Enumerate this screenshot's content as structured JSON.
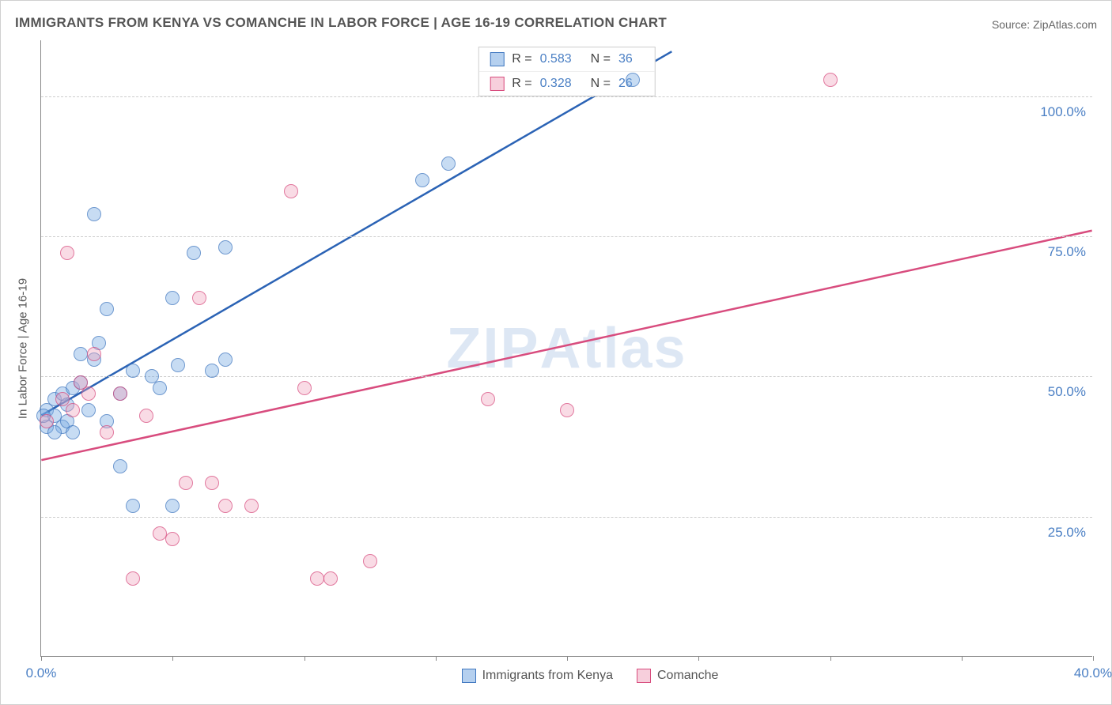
{
  "title": "IMMIGRANTS FROM KENYA VS COMANCHE IN LABOR FORCE | AGE 16-19 CORRELATION CHART",
  "source": "Source: ZipAtlas.com",
  "y_axis_label": "In Labor Force | Age 16-19",
  "watermark": "ZIPAtlas",
  "chart": {
    "type": "scatter",
    "xlim": [
      0,
      40
    ],
    "ylim": [
      0,
      110
    ],
    "x_ticks": [
      0,
      5,
      10,
      15,
      20,
      25,
      30,
      35,
      40
    ],
    "x_tick_labels": {
      "0": "0.0%",
      "40": "40.0%"
    },
    "y_gridlines": [
      25,
      50,
      75,
      100
    ],
    "y_tick_labels": {
      "25": "25.0%",
      "50": "50.0%",
      "75": "75.0%",
      "100": "100.0%"
    },
    "background_color": "#ffffff",
    "grid_color": "#cccccc",
    "axis_color": "#888888",
    "tick_font_color": "#4a7fc4",
    "marker_radius": 9,
    "series": [
      {
        "name": "Immigrants from Kenya",
        "color_fill": "rgba(120,170,225,0.55)",
        "color_stroke": "#3f77c0",
        "r": "0.583",
        "n": "36",
        "trend": {
          "x1": 0,
          "y1": 43,
          "x2": 24,
          "y2": 108,
          "color": "#2b63b5",
          "width": 2.5
        },
        "points": [
          [
            0.2,
            44
          ],
          [
            0.2,
            41
          ],
          [
            0.5,
            46
          ],
          [
            0.5,
            43
          ],
          [
            0.8,
            47
          ],
          [
            0.8,
            41
          ],
          [
            1.0,
            45
          ],
          [
            1.0,
            42
          ],
          [
            1.2,
            48
          ],
          [
            1.2,
            40
          ],
          [
            1.5,
            49
          ],
          [
            1.5,
            54
          ],
          [
            2.0,
            53
          ],
          [
            2.0,
            79
          ],
          [
            2.2,
            56
          ],
          [
            2.5,
            62
          ],
          [
            2.5,
            42
          ],
          [
            3.0,
            47
          ],
          [
            3.0,
            34
          ],
          [
            3.5,
            51
          ],
          [
            3.5,
            27
          ],
          [
            4.2,
            50
          ],
          [
            4.5,
            48
          ],
          [
            5.0,
            64
          ],
          [
            5.0,
            27
          ],
          [
            5.2,
            52
          ],
          [
            5.8,
            72
          ],
          [
            6.5,
            51
          ],
          [
            7.0,
            53
          ],
          [
            7.0,
            73
          ],
          [
            14.5,
            85
          ],
          [
            15.5,
            88
          ],
          [
            22.5,
            103
          ],
          [
            0.5,
            40
          ],
          [
            1.8,
            44
          ],
          [
            0.1,
            43
          ]
        ]
      },
      {
        "name": "Comanche",
        "color_fill": "rgba(240,160,185,0.5)",
        "color_stroke": "#d84c7e",
        "r": "0.328",
        "n": "26",
        "trend": {
          "x1": 0,
          "y1": 35,
          "x2": 40,
          "y2": 76,
          "color": "#d84c7e",
          "width": 2.5
        },
        "points": [
          [
            0.2,
            42
          ],
          [
            0.8,
            46
          ],
          [
            1.0,
            72
          ],
          [
            1.2,
            44
          ],
          [
            1.5,
            49
          ],
          [
            1.8,
            47
          ],
          [
            2.0,
            54
          ],
          [
            2.5,
            40
          ],
          [
            3.0,
            47
          ],
          [
            3.5,
            14
          ],
          [
            4.0,
            43
          ],
          [
            4.5,
            22
          ],
          [
            5.0,
            21
          ],
          [
            5.5,
            31
          ],
          [
            6.0,
            64
          ],
          [
            6.5,
            31
          ],
          [
            7.0,
            27
          ],
          [
            8.0,
            27
          ],
          [
            9.5,
            83
          ],
          [
            10.0,
            48
          ],
          [
            10.5,
            14
          ],
          [
            11.0,
            14
          ],
          [
            12.5,
            17
          ],
          [
            17.0,
            46
          ],
          [
            20.0,
            44
          ],
          [
            30.0,
            103
          ]
        ]
      }
    ]
  },
  "legend_top": {
    "rows": [
      {
        "swatch": "blue",
        "r_label": "R =",
        "r_value": "0.583",
        "n_label": "N =",
        "n_value": "36"
      },
      {
        "swatch": "pink",
        "r_label": "R =",
        "r_value": "0.328",
        "n_label": "N =",
        "n_value": "26"
      }
    ]
  },
  "legend_bottom": {
    "items": [
      {
        "swatch": "blue",
        "label": "Immigrants from Kenya"
      },
      {
        "swatch": "pink",
        "label": "Comanche"
      }
    ]
  }
}
